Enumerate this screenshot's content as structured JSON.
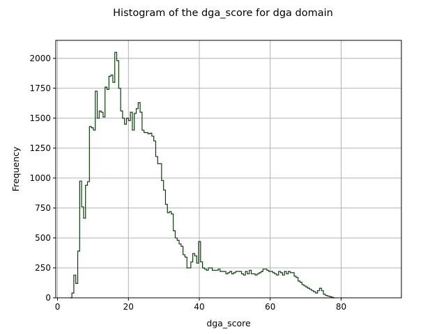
{
  "chart_data": {
    "type": "histogram-step",
    "title": "Histogram of the dga_score for dga domain",
    "xlabel": "dga_score",
    "ylabel": "Frequency",
    "xlim": [
      -0.5,
      97
    ],
    "ylim": [
      0,
      2150
    ],
    "xticks": [
      0,
      20,
      40,
      60,
      80
    ],
    "yticks": [
      0,
      250,
      500,
      750,
      1000,
      1250,
      1500,
      1750,
      2000
    ],
    "grid": true,
    "bin_edges_start": 3.5,
    "bin_width": 0.55,
    "counts": [
      0,
      40,
      190,
      120,
      390,
      975,
      760,
      665,
      940,
      970,
      1430,
      1420,
      1400,
      1725,
      1500,
      1560,
      1550,
      1510,
      1760,
      1740,
      1850,
      1860,
      1800,
      2050,
      1980,
      1750,
      1560,
      1500,
      1450,
      1500,
      1480,
      1550,
      1400,
      1540,
      1580,
      1630,
      1550,
      1400,
      1380,
      1380,
      1370,
      1375,
      1350,
      1310,
      1180,
      1120,
      1120,
      980,
      900,
      780,
      710,
      720,
      700,
      560,
      500,
      480,
      450,
      430,
      360,
      340,
      250,
      250,
      300,
      370,
      350,
      290,
      470,
      300,
      250,
      240,
      230,
      250,
      250,
      230,
      230,
      230,
      240,
      220,
      220,
      220,
      200,
      210,
      220,
      200,
      210,
      220,
      220,
      220,
      200,
      190,
      220,
      200,
      230,
      200,
      200,
      190,
      200,
      210,
      220,
      240,
      240,
      230,
      220,
      220,
      210,
      200,
      190,
      220,
      210,
      190,
      220,
      200,
      220,
      210,
      210,
      180,
      170,
      140,
      130,
      110,
      100,
      90,
      80,
      70,
      60,
      50,
      40,
      60,
      80,
      60,
      30,
      20,
      15,
      10,
      5,
      0
    ]
  }
}
